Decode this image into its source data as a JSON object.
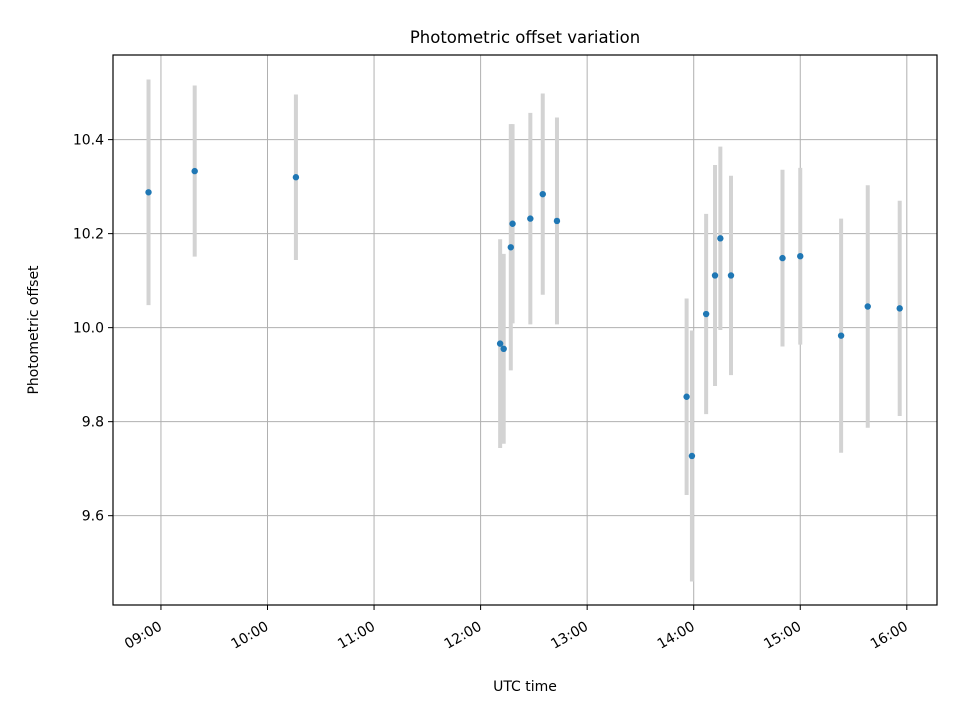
{
  "chart_data": {
    "type": "scatter",
    "title": "Photometric offset variation",
    "xlabel": "UTC time",
    "ylabel": "Photometric offset",
    "xlim": [
      "08:33",
      "16:17"
    ],
    "ylim": [
      9.41,
      10.58
    ],
    "x_ticks": [
      "09:00",
      "10:00",
      "11:00",
      "12:00",
      "13:00",
      "14:00",
      "15:00",
      "16:00"
    ],
    "y_ticks": [
      "9.6",
      "9.8",
      "10.0",
      "10.2",
      "10.4"
    ],
    "grid": true,
    "point_color": "#1f77b4",
    "errorbar_color": "#d3d3d3",
    "points": [
      {
        "t": "08:53",
        "y": 10.288,
        "err": 0.24
      },
      {
        "t": "09:19",
        "y": 10.333,
        "err": 0.182
      },
      {
        "t": "10:16",
        "y": 10.32,
        "err": 0.176
      },
      {
        "t": "12:11",
        "y": 9.966,
        "err": 0.222
      },
      {
        "t": "12:13",
        "y": 9.955,
        "err": 0.202
      },
      {
        "t": "12:17",
        "y": 10.171,
        "err": 0.262
      },
      {
        "t": "12:18",
        "y": 10.221,
        "err": 0.212
      },
      {
        "t": "12:28",
        "y": 10.232,
        "err": 0.225
      },
      {
        "t": "12:35",
        "y": 10.284,
        "err": 0.214
      },
      {
        "t": "12:43",
        "y": 10.227,
        "err": 0.22
      },
      {
        "t": "13:56",
        "y": 9.853,
        "err": 0.209
      },
      {
        "t": "13:59",
        "y": 9.727,
        "err": 0.267
      },
      {
        "t": "14:07",
        "y": 10.029,
        "err": 0.213
      },
      {
        "t": "14:12",
        "y": 10.111,
        "err": 0.235
      },
      {
        "t": "14:15",
        "y": 10.19,
        "err": 0.195
      },
      {
        "t": "14:21",
        "y": 10.111,
        "err": 0.212
      },
      {
        "t": "14:50",
        "y": 10.148,
        "err": 0.188
      },
      {
        "t": "15:00",
        "y": 10.152,
        "err": 0.188
      },
      {
        "t": "15:23",
        "y": 9.983,
        "err": 0.249
      },
      {
        "t": "15:38",
        "y": 10.045,
        "err": 0.258
      },
      {
        "t": "15:56",
        "y": 10.041,
        "err": 0.229
      }
    ]
  }
}
